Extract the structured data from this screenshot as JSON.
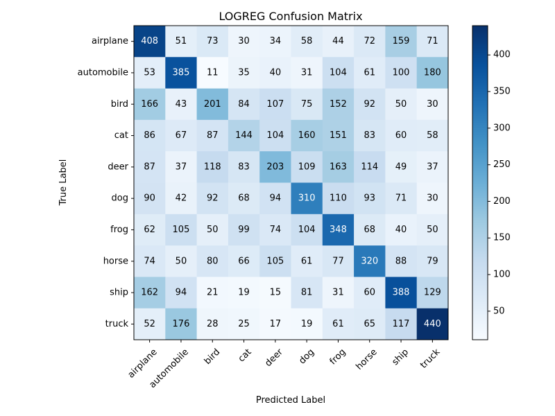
{
  "chart_data": {
    "type": "heatmap",
    "title": "LOGREG Confusion Matrix",
    "xlabel": "Predicted Label",
    "ylabel": "True Label",
    "x_categories": [
      "airplane",
      "automobile",
      "bird",
      "cat",
      "deer",
      "dog",
      "frog",
      "horse",
      "ship",
      "truck"
    ],
    "y_categories": [
      "airplane",
      "automobile",
      "bird",
      "cat",
      "deer",
      "dog",
      "frog",
      "horse",
      "ship",
      "truck"
    ],
    "values": [
      [
        408,
        51,
        73,
        30,
        34,
        58,
        44,
        72,
        159,
        71
      ],
      [
        53,
        385,
        11,
        35,
        40,
        31,
        104,
        61,
        100,
        180
      ],
      [
        166,
        43,
        201,
        84,
        107,
        75,
        152,
        92,
        50,
        30
      ],
      [
        86,
        67,
        87,
        144,
        104,
        160,
        151,
        83,
        60,
        58
      ],
      [
        87,
        37,
        118,
        83,
        203,
        109,
        163,
        114,
        49,
        37
      ],
      [
        90,
        42,
        92,
        68,
        94,
        310,
        110,
        93,
        71,
        30
      ],
      [
        62,
        105,
        50,
        99,
        74,
        104,
        348,
        68,
        40,
        50
      ],
      [
        74,
        50,
        80,
        66,
        105,
        61,
        77,
        320,
        88,
        79
      ],
      [
        162,
        94,
        21,
        19,
        15,
        81,
        31,
        60,
        388,
        129
      ],
      [
        52,
        176,
        28,
        25,
        17,
        19,
        61,
        65,
        117,
        440
      ]
    ],
    "colormap": "Blues",
    "colorbar": {
      "range": [
        11,
        440
      ],
      "ticks": [
        50,
        100,
        150,
        200,
        250,
        300,
        350,
        400
      ]
    },
    "grid": false
  }
}
